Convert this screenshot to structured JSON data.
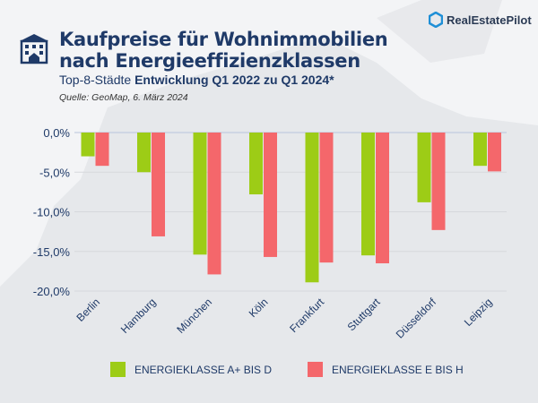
{
  "brand": {
    "name": "RealEstatePilot",
    "icon": "hexagon-logo-icon",
    "color": "#1f8fd6"
  },
  "header": {
    "icon": "apartment-building-icon",
    "title_line1": "Kaufpreise für Wohnimmobilien",
    "title_line2": "nach Energieeffizienzklassen",
    "subtitle_plain": "Top-8-Städte ",
    "subtitle_bold": "Entwicklung Q1 2022 zu Q1 2024*",
    "source": "Quelle: GeoMap, 6. März 2024"
  },
  "chart_data": {
    "type": "bar",
    "categories": [
      "Berlin",
      "Hamburg",
      "München",
      "Köln",
      "Frankfurt",
      "Stuttgart",
      "Düsseldorf",
      "Leipzig"
    ],
    "series": [
      {
        "name": "ENERGIEKLASSE A+ BIS D",
        "color": "#9dcc16",
        "values": [
          -3.0,
          -5.0,
          -15.4,
          -7.8,
          -18.9,
          -15.5,
          -8.8,
          -4.2
        ]
      },
      {
        "name": "ENERGIEKLASSE E BIS H",
        "color": "#f4676b",
        "values": [
          -4.2,
          -13.1,
          -17.9,
          -15.7,
          -16.4,
          -16.5,
          -12.3,
          -4.9
        ]
      }
    ],
    "yticks": [
      "0,0%",
      "-5,0%",
      "-10,0%",
      "-15,0%",
      "-20,0%"
    ],
    "ytick_values": [
      0,
      -5,
      -10,
      -15,
      -20
    ],
    "ylim": [
      -20,
      0
    ],
    "grid": true,
    "legend": "bottom"
  }
}
